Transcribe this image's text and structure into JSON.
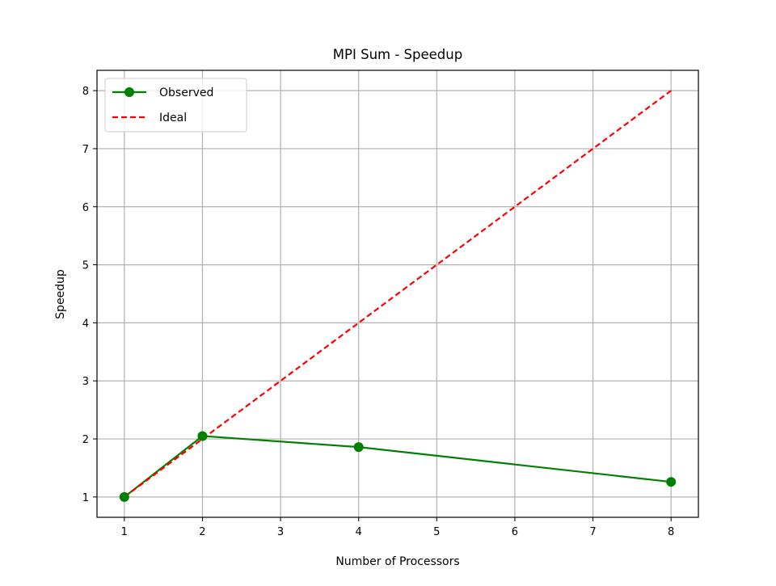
{
  "chart_data": {
    "type": "line",
    "title": "MPI Sum - Speedup",
    "xlabel": "Number of Processors",
    "ylabel": "Speedup",
    "xlim": [
      0.65,
      8.35
    ],
    "ylim": [
      0.65,
      8.35
    ],
    "xticks": [
      1,
      2,
      3,
      4,
      5,
      6,
      7,
      8
    ],
    "yticks": [
      1,
      2,
      3,
      4,
      5,
      6,
      7,
      8
    ],
    "grid": true,
    "legend_position": "top-left",
    "series": [
      {
        "name": "Observed",
        "x": [
          1,
          2,
          4,
          8
        ],
        "y": [
          1.0,
          2.05,
          1.86,
          1.26
        ],
        "color": "#008000",
        "style": "solid",
        "marker": "circle"
      },
      {
        "name": "Ideal",
        "x": [
          1,
          2,
          4,
          8
        ],
        "y": [
          1,
          2,
          4,
          8
        ],
        "color": "#ff0000",
        "style": "dashed",
        "marker": "none"
      }
    ]
  }
}
